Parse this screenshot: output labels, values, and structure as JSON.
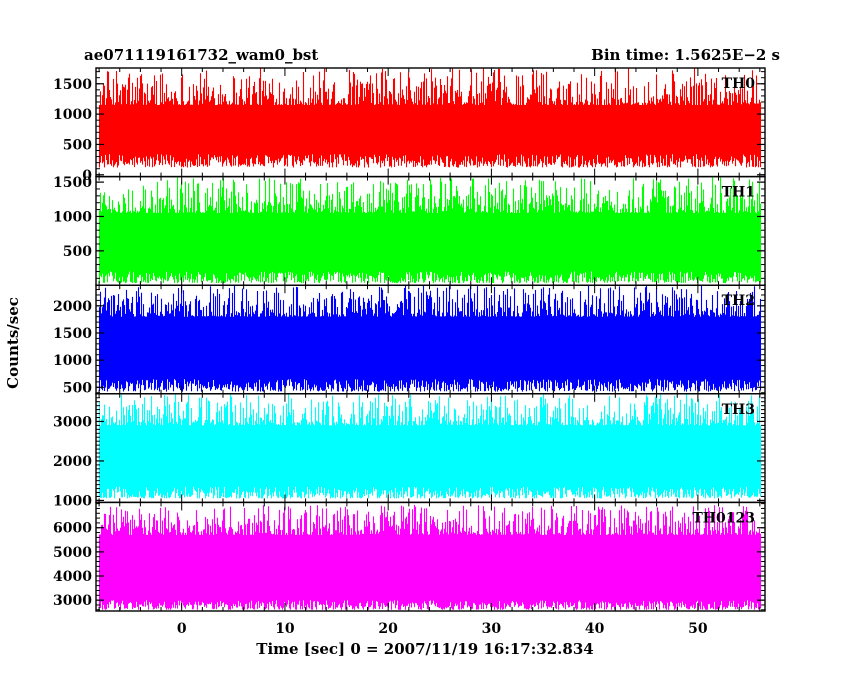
{
  "header": {
    "title": "ae071119161732_wam0_bst",
    "bin_time": "Bin time: 1.5625E−2 s"
  },
  "axes": {
    "ylabel": "Counts/sec",
    "xlabel": "Time [sec] 0 = 2007/11/19 16:17:32.834"
  },
  "chart_data": {
    "type": "line",
    "title": "ae071119161732_wam0_bst",
    "subtitle": "Bin time: 1.5625E−2 s",
    "xlabel": "Time [sec] 0 = 2007/11/19 16:17:32.834",
    "ylabel": "Counts/sec",
    "xlim": [
      -8.3,
      56.5
    ],
    "data_xrange": [
      -8.0,
      56.0
    ],
    "bin_time_s": 0.015625,
    "x_ticks": [
      0,
      10,
      20,
      30,
      40,
      50
    ],
    "x_tick_labels": [
      "0",
      "10",
      "20",
      "30",
      "40",
      "50"
    ],
    "grid": false,
    "panels": [
      {
        "name": "TH0",
        "color": "#ff0000",
        "ylim": [
          -30,
          1760
        ],
        "mean": 750,
        "low_range": [
          120,
          340
        ],
        "high_range": [
          1150,
          1760
        ],
        "y_ticks": [
          0,
          500,
          1000,
          1500
        ],
        "y_tick_labels": [
          "0",
          "500",
          "1000",
          "1500"
        ]
      },
      {
        "name": "TH1",
        "color": "#00ff00",
        "ylim": [
          0,
          1580
        ],
        "mean": 640,
        "low_range": [
          30,
          200
        ],
        "high_range": [
          1050,
          1580
        ],
        "y_ticks": [
          500,
          1000,
          1500
        ],
        "y_tick_labels": [
          "500",
          "1000",
          "1500"
        ]
      },
      {
        "name": "TH2",
        "color": "#0000ff",
        "ylim": [
          380,
          2380
        ],
        "mean": 1150,
        "low_range": [
          420,
          650
        ],
        "high_range": [
          1800,
          2380
        ],
        "y_ticks": [
          500,
          1000,
          1500,
          2000
        ],
        "y_tick_labels": [
          "500",
          "1000",
          "1500",
          "2000"
        ]
      },
      {
        "name": "TH3",
        "color": "#00ffff",
        "ylim": [
          950,
          3700
        ],
        "mean": 2150,
        "low_range": [
          1050,
          1350
        ],
        "high_range": [
          2900,
          3700
        ],
        "y_ticks": [
          1000,
          2000,
          3000
        ],
        "y_tick_labels": [
          "1000",
          "2000",
          "3000"
        ]
      },
      {
        "name": "TH0123",
        "color": "#ff00ff",
        "ylim": [
          2550,
          7050
        ],
        "mean": 4350,
        "low_range": [
          2600,
          3000
        ],
        "high_range": [
          5700,
          6950
        ],
        "y_ticks": [
          3000,
          4000,
          5000,
          6000
        ],
        "y_tick_labels": [
          "3000",
          "4000",
          "5000",
          "6000"
        ]
      }
    ]
  }
}
